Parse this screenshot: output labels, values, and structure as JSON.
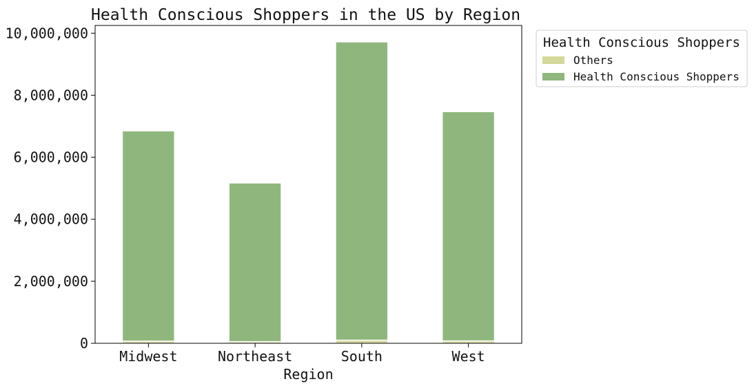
{
  "chart_data": {
    "type": "bar",
    "stacked": true,
    "title": "Health Conscious Shoppers in the US by Region",
    "xlabel": "Region",
    "ylabel": "",
    "categories": [
      "Midwest",
      "Northeast",
      "South",
      "West"
    ],
    "ylim": [
      0,
      10250000
    ],
    "yticks": [
      0,
      2000000,
      4000000,
      6000000,
      8000000,
      10000000
    ],
    "ytick_labels": [
      "0",
      "2,000,000",
      "4,000,000",
      "6,000,000",
      "8,000,000",
      "10,000,000"
    ],
    "grid": false,
    "legend": {
      "title": "Health Conscious Shoppers",
      "placement": "outside-top-right"
    },
    "series": [
      {
        "name": "Others",
        "color": "#d3d89a",
        "values": [
          70000,
          52000,
          100000,
          76000
        ]
      },
      {
        "name": "Health Conscious Shoppers",
        "color": "#8fb77d",
        "values": [
          6780000,
          5118000,
          9620000,
          7394000
        ]
      }
    ]
  }
}
